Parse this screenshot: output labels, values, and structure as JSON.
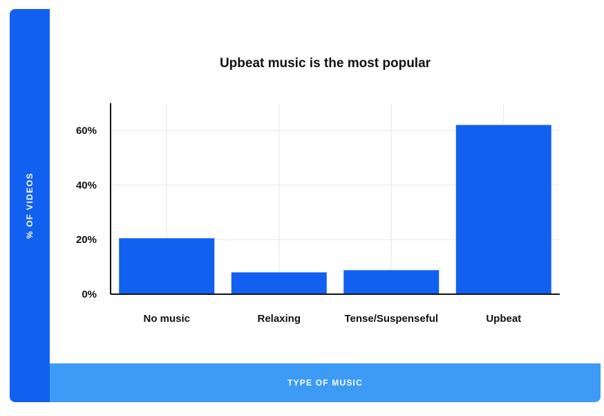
{
  "chart_data": {
    "type": "bar",
    "title": "Upbeat music is the most popular",
    "xlabel": "TYPE OF MUSIC",
    "ylabel": "% OF VIDEOS",
    "categories": [
      "No music",
      "Relaxing",
      "Tense/Suspenseful",
      "Upbeat"
    ],
    "values": [
      20.5,
      8,
      8.8,
      62
    ],
    "ylim": [
      0,
      70
    ],
    "yticks": [
      0,
      20,
      40,
      60
    ],
    "ytick_labels": [
      "0%",
      "20%",
      "40%",
      "60%"
    ],
    "grid": true,
    "bar_color": "#1260f0"
  },
  "colors": {
    "y_band": "#1260f0",
    "x_band": "#3d9bf5",
    "grid": "#e6e6e6",
    "axis": "#111111"
  }
}
